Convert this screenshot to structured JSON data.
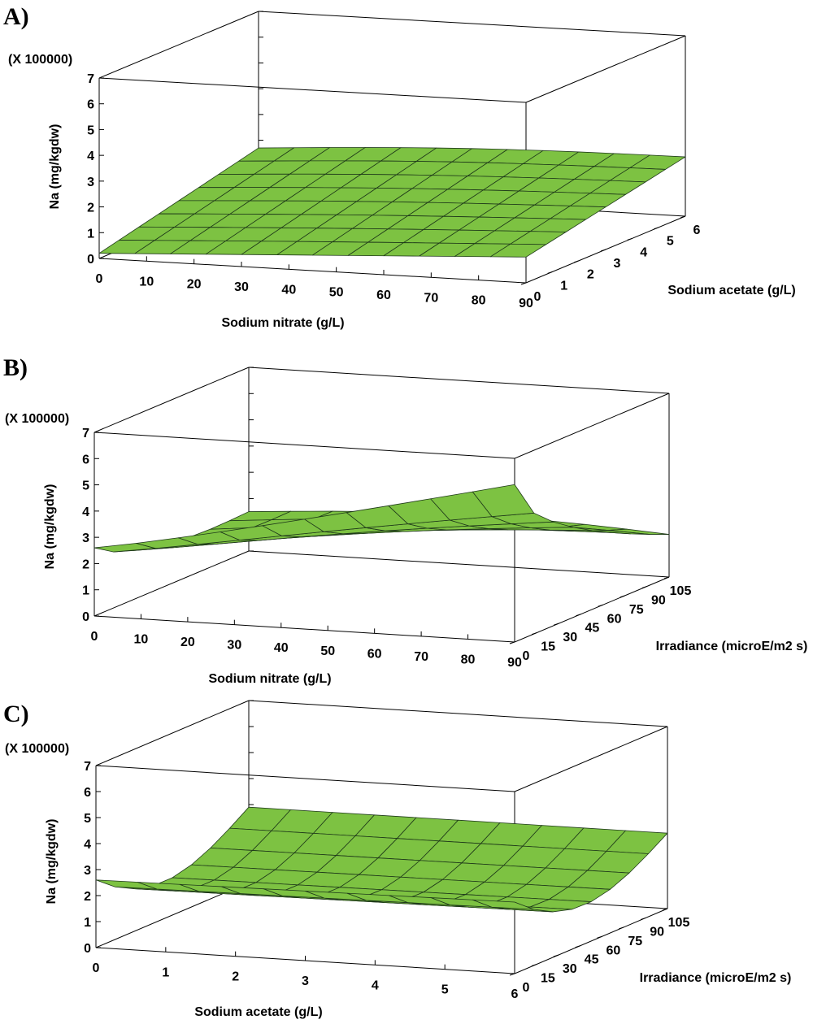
{
  "chart_data": [
    {
      "type": "surface",
      "panel_label": "A)",
      "multiplier_label": "(X 100000)",
      "zlabel": "Na (mg/kgdw)",
      "xlabel": "Sodium nitrate (g/L)",
      "ylabel": "Sodium acetate (g/L)",
      "xlim": [
        0,
        90
      ],
      "ylim": [
        0,
        6
      ],
      "zlim": [
        0,
        7
      ],
      "x_ticks": [
        "0",
        "10",
        "20",
        "30",
        "40",
        "50",
        "60",
        "70",
        "80",
        "90"
      ],
      "y_ticks": [
        "0",
        "1",
        "2",
        "3",
        "4",
        "5",
        "6"
      ],
      "z_ticks": [
        "0",
        "1",
        "2",
        "3",
        "4",
        "5",
        "6",
        "7"
      ],
      "grid": [
        12,
        8
      ],
      "surface": {
        "description": "nearly flat plane rising slightly with sodium nitrate",
        "corners_z": {
          "x0_y0": 0.2,
          "x90_y0": 1.0,
          "x0_y6": 1.7,
          "x90_y6": 2.2
        }
      }
    },
    {
      "type": "surface",
      "panel_label": "B)",
      "multiplier_label": "(X 100000)",
      "zlabel": "Na (mg/kgdw)",
      "xlabel": "Sodium nitrate (g/L)",
      "ylabel": "Irradiance (microE/m2 s)",
      "xlim": [
        0,
        90
      ],
      "ylim": [
        0,
        105
      ],
      "zlim": [
        0,
        7
      ],
      "x_ticks": [
        "0",
        "10",
        "20",
        "30",
        "40",
        "50",
        "60",
        "70",
        "80",
        "90"
      ],
      "y_ticks": [
        "0",
        "15",
        "30",
        "45",
        "60",
        "75",
        "90",
        "105"
      ],
      "z_ticks": [
        "0",
        "1",
        "2",
        "3",
        "4",
        "5",
        "6",
        "7"
      ],
      "grid": [
        10,
        8
      ],
      "surface": {
        "description": "rises strongly with sodium nitrate at low irradiance, declines with irradiance",
        "corners_z": {
          "x0_y0": 2.6,
          "x90_y0": 6.0,
          "x0_y105": 1.5,
          "x90_y105": 1.5
        }
      }
    },
    {
      "type": "surface",
      "panel_label": "C)",
      "multiplier_label": "(X 100000)",
      "zlabel": "Na (mg/kgdw)",
      "xlabel": "Sodium acetate (g/L)",
      "ylabel": "Irradiance (microE/m2 s)",
      "xlim": [
        0,
        6
      ],
      "ylim": [
        0,
        105
      ],
      "zlim": [
        0,
        7
      ],
      "x_ticks": [
        "0",
        "1",
        "2",
        "3",
        "4",
        "5",
        "6"
      ],
      "y_ticks": [
        "0",
        "15",
        "30",
        "45",
        "60",
        "75",
        "90",
        "105"
      ],
      "z_ticks": [
        "0",
        "1",
        "2",
        "3",
        "4",
        "5",
        "6",
        "7"
      ],
      "grid": [
        10,
        8
      ],
      "surface": {
        "description": "U-shaped trough along irradiance, nearly constant in sodium acetate",
        "corners_z": {
          "x0_y0": 2.6,
          "x6_y0": 2.6,
          "x0_y105": 2.9,
          "x6_y105": 2.9
        }
      }
    }
  ]
}
